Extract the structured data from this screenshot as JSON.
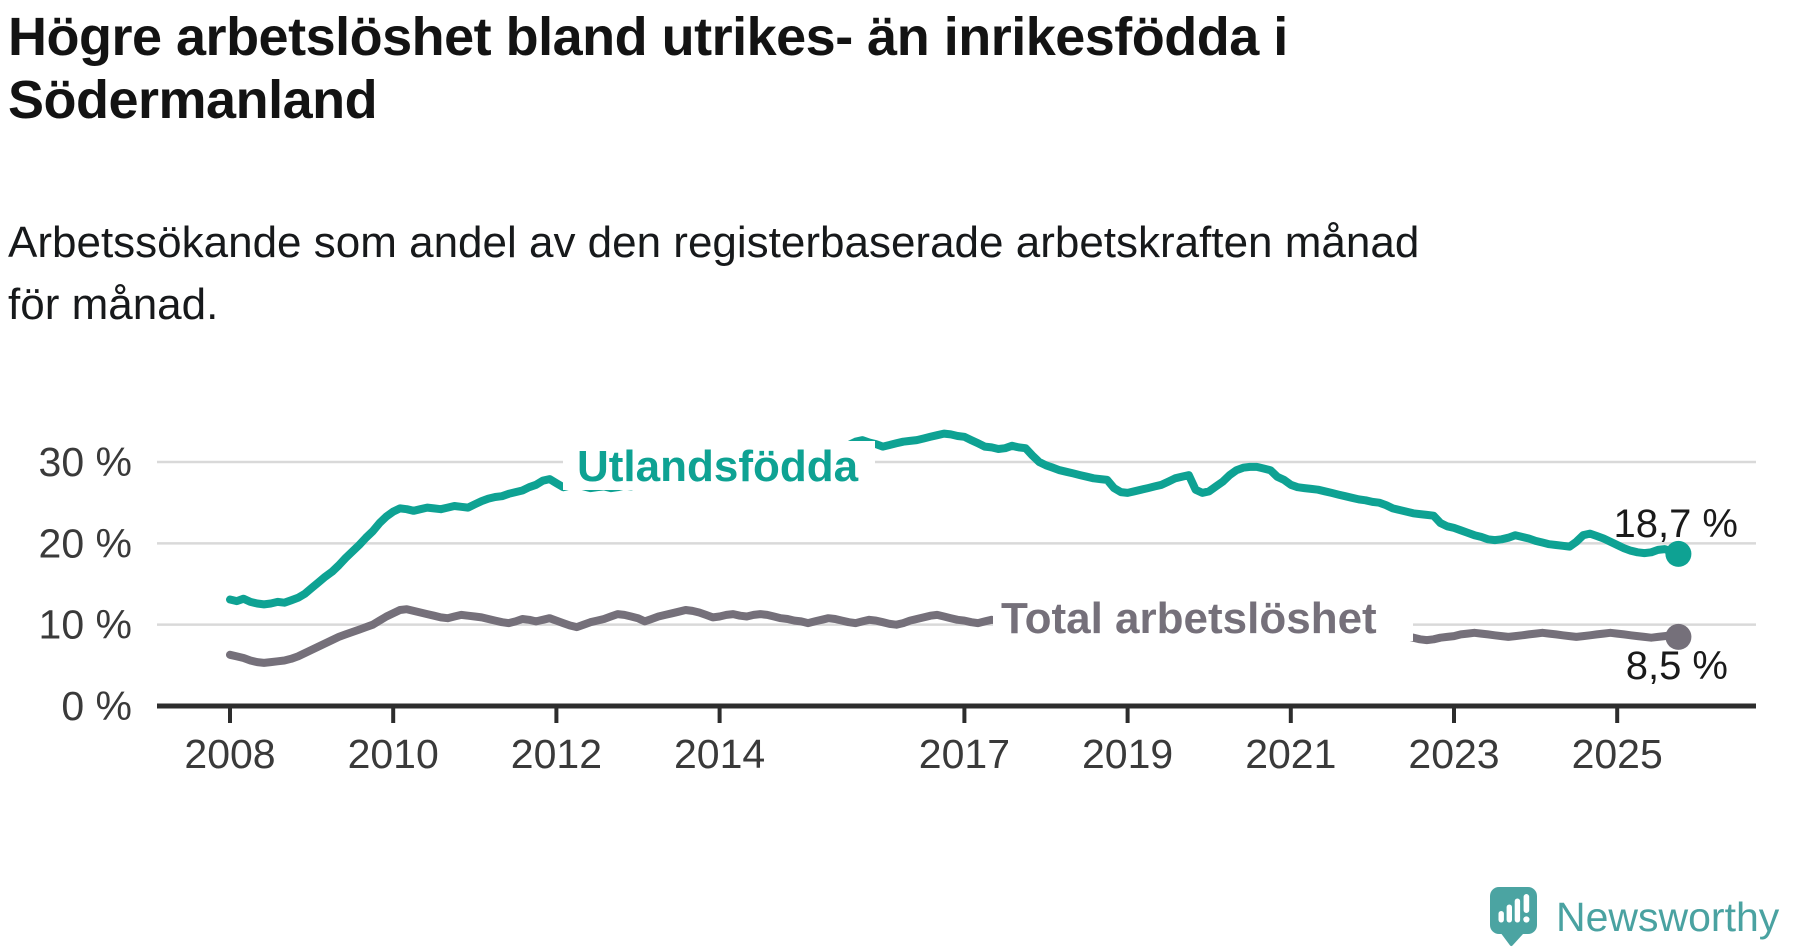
{
  "title": "Högre arbetslöshet bland utrikes- än inrikesfödda i Södermanland",
  "subtitle": "Arbetssökande som andel av den registerbaserade arbetskraften månad för månad.",
  "logo": {
    "text": "Newsworthy",
    "color": "#4aa2a1",
    "icon": "newsworthy-speech-bubble-bar-chart",
    "icon_color": "#4ba4a2"
  },
  "colors": {
    "teal_series": "#0ea293",
    "gray_series": "#75707a",
    "gridline": "#d9d9d9",
    "axis": "#2d2d2d",
    "tick_text": "#3a3a3a",
    "value_text": "#1a1a1a",
    "title_text": "#131313"
  },
  "chart_data": {
    "type": "line",
    "title": "Högre arbetslöshet bland utrikes- än inrikesfödda i Södermanland",
    "subtitle": "Arbetssökande som andel av den registerbaserade arbetskraften månad för månad.",
    "x_unit": "month",
    "x_start_year": 2008,
    "x_end": "2025-10",
    "x_tick_years": [
      2008,
      2010,
      2012,
      2014,
      2017,
      2019,
      2021,
      2023,
      2025
    ],
    "y_ticks": [
      {
        "value": 0,
        "label": "0 %"
      },
      {
        "value": 10,
        "label": "10 %"
      },
      {
        "value": 20,
        "label": "20 %"
      },
      {
        "value": 30,
        "label": "30 %"
      }
    ],
    "ylim": [
      0,
      35
    ],
    "grid": "horizontal-only",
    "legend_position": "inline-labels",
    "series": [
      {
        "name": "Utlandsfödda",
        "color": "#0ea293",
        "end_label": "18,7 %",
        "end_value": 18.7,
        "values": [
          13.1,
          12.9,
          13.2,
          12.8,
          12.6,
          12.5,
          12.6,
          12.8,
          12.7,
          13.0,
          13.3,
          13.8,
          14.5,
          15.2,
          15.9,
          16.5,
          17.3,
          18.2,
          19.0,
          19.8,
          20.7,
          21.5,
          22.5,
          23.3,
          23.9,
          24.3,
          24.2,
          24.0,
          24.2,
          24.4,
          24.3,
          24.2,
          24.4,
          24.6,
          24.5,
          24.4,
          24.8,
          25.2,
          25.5,
          25.7,
          25.8,
          26.1,
          26.3,
          26.5,
          26.9,
          27.2,
          27.7,
          27.9,
          27.4,
          26.9,
          27.1,
          27.2,
          27.0,
          26.8,
          26.9,
          27.0,
          26.8,
          26.9,
          27.1,
          27.0,
          27.2,
          27.4,
          27.3,
          27.5,
          27.6,
          27.5,
          27.7,
          27.9,
          27.8,
          28.0,
          28.2,
          28.1,
          28.3,
          28.5,
          28.4,
          28.6,
          28.8,
          28.7,
          28.9,
          29.1,
          29.0,
          29.2,
          29.4,
          29.3,
          29.6,
          29.9,
          30.2,
          30.5,
          30.9,
          31.3,
          31.7,
          32.1,
          32.5,
          32.7,
          32.4,
          32.2,
          31.9,
          32.1,
          32.3,
          32.5,
          32.6,
          32.7,
          32.9,
          33.1,
          33.3,
          33.5,
          33.4,
          33.2,
          33.1,
          32.7,
          32.3,
          31.9,
          31.8,
          31.6,
          31.7,
          32.0,
          31.8,
          31.7,
          30.8,
          30.0,
          29.6,
          29.3,
          29.0,
          28.8,
          28.6,
          28.4,
          28.2,
          28.0,
          27.9,
          27.8,
          26.8,
          26.3,
          26.2,
          26.4,
          26.6,
          26.8,
          27.0,
          27.2,
          27.6,
          28.0,
          28.2,
          28.4,
          26.6,
          26.2,
          26.4,
          27.0,
          27.6,
          28.4,
          29.0,
          29.3,
          29.4,
          29.4,
          29.2,
          29.0,
          28.2,
          27.8,
          27.2,
          26.9,
          26.8,
          26.7,
          26.6,
          26.4,
          26.2,
          26.0,
          25.8,
          25.6,
          25.4,
          25.3,
          25.1,
          25.0,
          24.7,
          24.3,
          24.1,
          23.9,
          23.7,
          23.6,
          23.5,
          23.4,
          22.5,
          22.1,
          21.9,
          21.6,
          21.3,
          21.0,
          20.8,
          20.5,
          20.4,
          20.5,
          20.7,
          21.0,
          20.8,
          20.6,
          20.3,
          20.1,
          19.9,
          19.8,
          19.7,
          19.6,
          20.2,
          21.0,
          21.2,
          20.9,
          20.6,
          20.2,
          19.8,
          19.4,
          19.1,
          18.9,
          18.8,
          18.9,
          19.2,
          19.3,
          19.0,
          18.7
        ]
      },
      {
        "name": "Total arbetslöshet",
        "color": "#75707a",
        "end_label": "8,5 %",
        "end_value": 8.5,
        "values": [
          6.3,
          6.1,
          5.9,
          5.6,
          5.4,
          5.3,
          5.4,
          5.5,
          5.6,
          5.8,
          6.1,
          6.5,
          6.9,
          7.3,
          7.7,
          8.1,
          8.5,
          8.8,
          9.1,
          9.4,
          9.7,
          10.0,
          10.5,
          11.0,
          11.4,
          11.8,
          11.9,
          11.7,
          11.5,
          11.3,
          11.1,
          10.9,
          10.8,
          11.0,
          11.2,
          11.1,
          11.0,
          10.9,
          10.7,
          10.5,
          10.3,
          10.2,
          10.4,
          10.7,
          10.6,
          10.4,
          10.6,
          10.8,
          10.5,
          10.2,
          9.9,
          9.7,
          10.0,
          10.3,
          10.5,
          10.7,
          11.0,
          11.3,
          11.2,
          11.0,
          10.8,
          10.4,
          10.7,
          11.0,
          11.2,
          11.4,
          11.6,
          11.8,
          11.7,
          11.5,
          11.2,
          10.9,
          11.0,
          11.2,
          11.3,
          11.1,
          11.0,
          11.2,
          11.3,
          11.2,
          11.0,
          10.8,
          10.7,
          10.5,
          10.4,
          10.2,
          10.4,
          10.6,
          10.8,
          10.7,
          10.5,
          10.3,
          10.2,
          10.4,
          10.6,
          10.5,
          10.3,
          10.1,
          10.0,
          10.2,
          10.5,
          10.7,
          10.9,
          11.1,
          11.2,
          11.0,
          10.8,
          10.6,
          10.5,
          10.3,
          10.2,
          10.4,
          10.6,
          10.5,
          10.4,
          10.6,
          10.5,
          10.4,
          10.2,
          10.0,
          9.9,
          9.8,
          9.7,
          9.6,
          9.5,
          9.6,
          9.7,
          9.6,
          9.5,
          9.6,
          9.5,
          9.4,
          9.4,
          9.5,
          9.6,
          9.7,
          9.8,
          9.9,
          10.1,
          10.3,
          10.4,
          10.2,
          9.9,
          9.8,
          10.0,
          10.3,
          10.8,
          11.4,
          11.8,
          12.0,
          12.1,
          12.0,
          11.8,
          11.6,
          11.3,
          11.1,
          10.9,
          10.7,
          10.5,
          10.3,
          10.1,
          9.9,
          9.7,
          9.5,
          9.4,
          9.3,
          9.2,
          9.3,
          9.2,
          9.1,
          9.0,
          8.9,
          8.8,
          8.6,
          8.4,
          8.2,
          8.1,
          8.2,
          8.4,
          8.5,
          8.6,
          8.8,
          8.9,
          9.0,
          8.9,
          8.8,
          8.7,
          8.6,
          8.5,
          8.6,
          8.7,
          8.8,
          8.9,
          9.0,
          8.9,
          8.8,
          8.7,
          8.6,
          8.5,
          8.6,
          8.7,
          8.8,
          8.9,
          9.0,
          8.9,
          8.8,
          8.7,
          8.6,
          8.5,
          8.4,
          8.5,
          8.6,
          8.7,
          8.5
        ]
      }
    ]
  }
}
